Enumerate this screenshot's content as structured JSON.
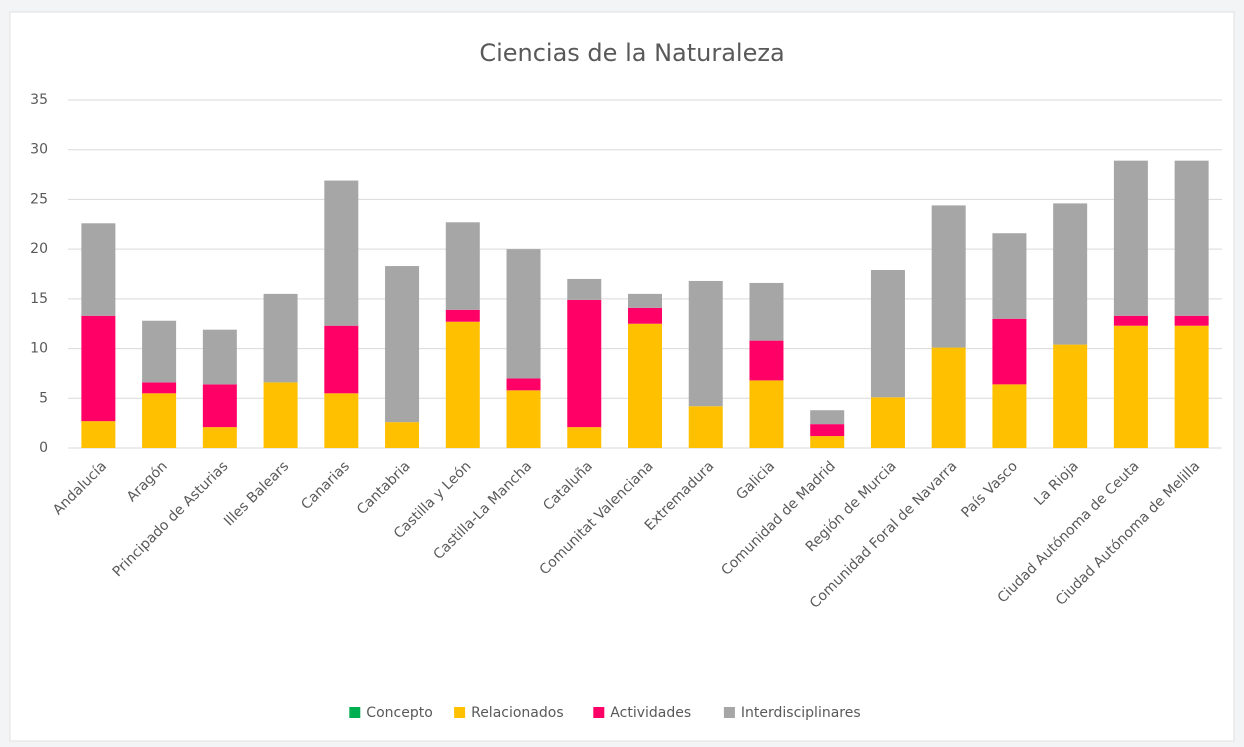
{
  "chart_data": {
    "type": "stacked_bar",
    "title": "Ciencias de la Naturaleza",
    "categories": [
      "Andalucía",
      "Aragón",
      "Principado de Asturias",
      "Illes Balears",
      "Canarias",
      "Cantabria",
      "Castilla y León",
      "Castilla-La Mancha",
      "Cataluña",
      "Comunitat Valenciana",
      "Extremadura",
      "Galicia",
      "Comunidad de Madrid",
      "Región de Murcia",
      "Comunidad Foral de Navarra",
      "País Vasco",
      "La Rioja",
      "Ciudad Autónoma de Ceuta",
      "Ciudad Autónoma de Melilla"
    ],
    "series": [
      {
        "name": "Concepto",
        "color": "#00b050",
        "values": [
          0,
          0,
          0,
          0,
          0,
          0,
          0,
          0,
          0,
          0,
          0,
          0,
          0,
          0,
          0,
          0,
          0,
          0,
          0
        ]
      },
      {
        "name": "Relacionados",
        "color": "#ffc000",
        "values": [
          2.7,
          5.5,
          2.1,
          6.6,
          5.5,
          2.6,
          12.7,
          5.8,
          2.1,
          12.5,
          4.2,
          6.8,
          1.2,
          5.1,
          10.1,
          6.4,
          10.4,
          12.3,
          12.3
        ]
      },
      {
        "name": "Actividades",
        "color": "#ff0066",
        "values": [
          10.6,
          1.1,
          4.3,
          0,
          6.8,
          0,
          1.2,
          1.2,
          12.8,
          1.6,
          0,
          4.0,
          1.2,
          0,
          0,
          6.6,
          0,
          1.0,
          1.0
        ]
      },
      {
        "name": "Interdisciplinares",
        "color": "#a6a6a6",
        "values": [
          9.3,
          6.2,
          5.5,
          8.9,
          14.6,
          15.7,
          8.8,
          13.0,
          2.1,
          1.4,
          12.6,
          5.8,
          1.4,
          12.8,
          14.3,
          8.6,
          14.2,
          15.6,
          15.6
        ]
      }
    ],
    "ylim": [
      0,
      35
    ],
    "yticks": [
      0,
      5,
      10,
      15,
      20,
      25,
      30,
      35
    ],
    "grid": true,
    "legend": "bottom"
  }
}
